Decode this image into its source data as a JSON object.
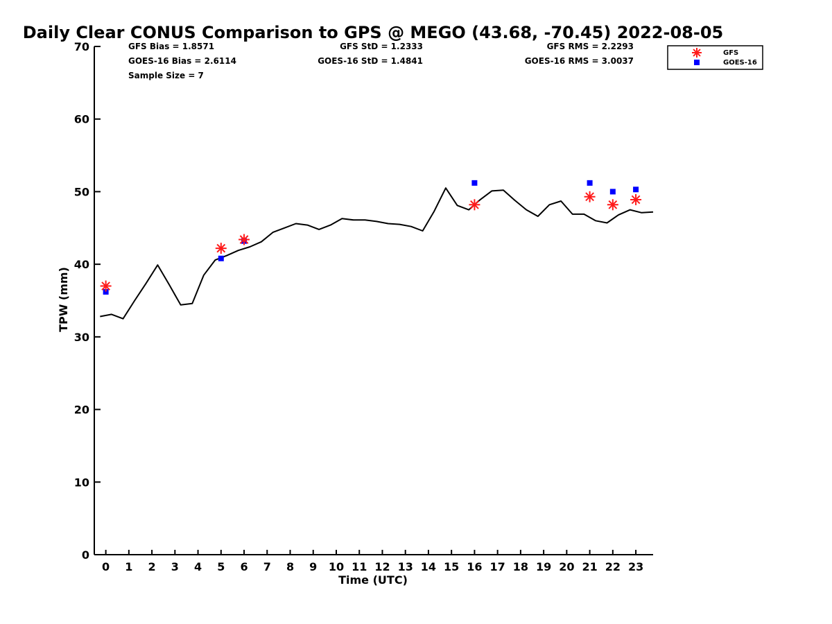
{
  "chart_data": {
    "type": "line",
    "title": "Daily Clear CONUS Comparison to GPS @ MEGO (43.68, -70.45) 2022-08-05",
    "xlabel": "Time (UTC)",
    "ylabel": "TPW (mm)",
    "xlim": [
      -0.5,
      23.75
    ],
    "ylim": [
      0,
      70
    ],
    "xticks": [
      0,
      1,
      2,
      3,
      4,
      5,
      6,
      7,
      8,
      9,
      10,
      11,
      12,
      13,
      14,
      15,
      16,
      17,
      18,
      19,
      20,
      21,
      22,
      23
    ],
    "yticks": [
      0,
      10,
      20,
      30,
      40,
      50,
      60,
      70
    ],
    "grid": false,
    "legend_position": "top-right",
    "stats": {
      "gfs_bias": "GFS Bias = 1.8571",
      "goes_bias": "GOES-16 Bias = 2.6114",
      "sample_size": "Sample Size = 7",
      "gfs_std": "GFS StD = 1.2333",
      "goes_std": "GOES-16 StD = 1.4841",
      "gfs_rms": "GFS RMS = 2.2293",
      "goes_rms": "GOES-16 RMS = 3.0037"
    },
    "series": [
      {
        "name": "GPS",
        "kind": "line",
        "color": "#000000",
        "x": [
          -0.25,
          0.25,
          0.75,
          1.25,
          1.75,
          2.25,
          2.75,
          3.25,
          3.75,
          4.25,
          4.75,
          5.25,
          5.75,
          6.25,
          6.75,
          7.25,
          7.75,
          8.25,
          8.75,
          9.25,
          9.75,
          10.25,
          10.75,
          11.25,
          11.75,
          12.25,
          12.75,
          13.25,
          13.75,
          14.25,
          14.75,
          15.25,
          15.75,
          16.25,
          16.75,
          17.25,
          17.75,
          18.25,
          18.75,
          19.25,
          19.75,
          20.25,
          20.75,
          21.25,
          21.75,
          22.25,
          22.75,
          23.25,
          23.75
        ],
        "values": [
          32.8,
          33.1,
          32.5,
          35.0,
          37.4,
          39.9,
          37.2,
          34.4,
          34.6,
          38.5,
          40.6,
          41.2,
          41.9,
          42.4,
          43.1,
          44.4,
          45.0,
          45.6,
          45.4,
          44.8,
          45.4,
          46.3,
          46.1,
          46.1,
          45.9,
          45.6,
          45.5,
          45.2,
          44.6,
          47.3,
          50.5,
          48.1,
          47.5,
          48.9,
          50.1,
          50.2,
          48.8,
          47.5,
          46.6,
          48.2,
          48.7,
          46.9,
          46.9,
          46.0,
          45.7,
          46.8,
          47.5,
          47.1,
          47.2
        ]
      },
      {
        "name": "GFS",
        "kind": "scatter",
        "marker": "asterisk",
        "color": "#ff1a1a",
        "x": [
          0,
          5,
          6,
          16,
          21,
          22,
          23
        ],
        "values": [
          37.0,
          42.2,
          43.4,
          48.2,
          49.3,
          48.2,
          48.9
        ]
      },
      {
        "name": "GOES-16",
        "kind": "scatter",
        "marker": "square",
        "color": "#0000ff",
        "x": [
          0,
          5,
          6,
          16,
          21,
          22,
          23
        ],
        "values": [
          36.2,
          40.8,
          43.2,
          51.2,
          51.2,
          50.0,
          50.3
        ]
      }
    ]
  }
}
